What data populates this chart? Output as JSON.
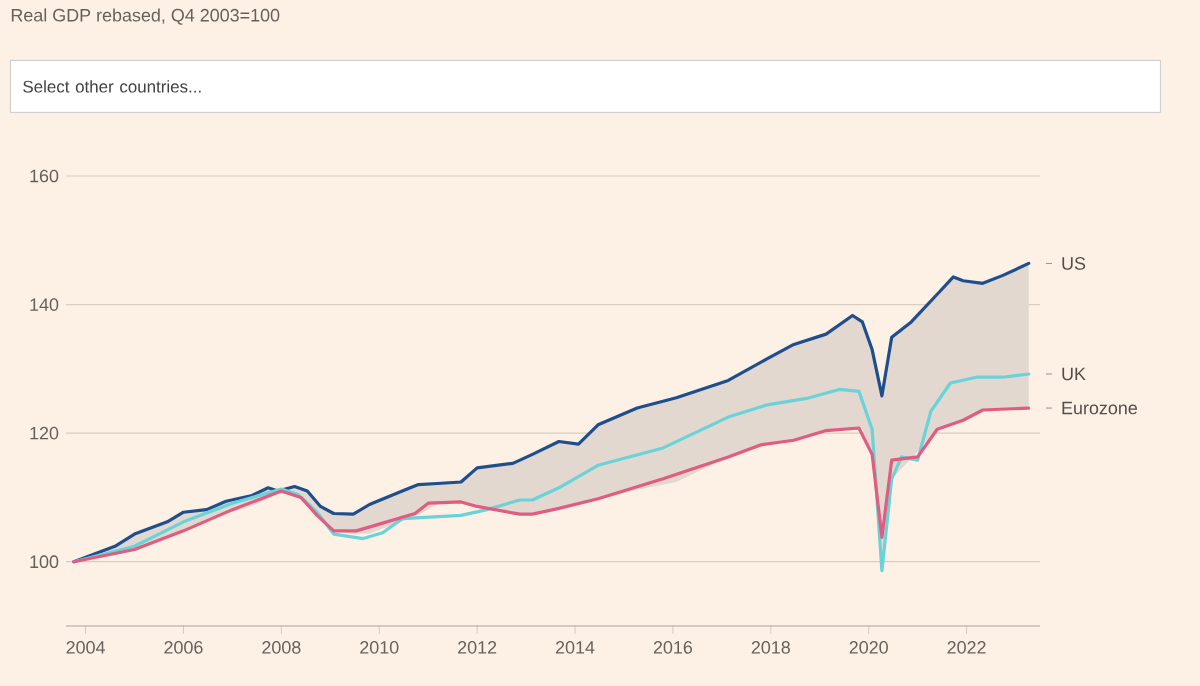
{
  "chart_data": {
    "type": "line",
    "subtitle": "Real GDP rebased, Q4 2003=100",
    "annotations": [
      "Select other countries..."
    ],
    "xlim": [
      2003.6,
      2023.5
    ],
    "xticks": [
      2004,
      2006,
      2008,
      2010,
      2012,
      2014,
      2016,
      2018,
      2020,
      2022
    ],
    "ylim": [
      90,
      160
    ],
    "yticks": [
      100,
      120,
      140,
      160
    ],
    "grid": "y",
    "series": [
      {
        "name": "US",
        "color": "#1f4e8c",
        "x": [
          2003.76,
          2004.6,
          2005,
          2005.67,
          2006,
          2006.47,
          2006.87,
          2007.4,
          2007.73,
          2007.93,
          2008.27,
          2008.53,
          2008.8,
          2009.07,
          2009.47,
          2009.8,
          2010.47,
          2010.8,
          2011.27,
          2011.67,
          2012,
          2012.73,
          2013.13,
          2013.67,
          2014.07,
          2014.47,
          2015.27,
          2016.07,
          2017.13,
          2017.93,
          2018.47,
          2019.13,
          2019.67,
          2019.87,
          2020.07,
          2020.27,
          2020.47,
          2020.87,
          2021.4,
          2021.73,
          2021.93,
          2022.33,
          2022.73,
          2023.27
        ],
        "values": [
          100,
          102.4,
          104.3,
          106.2,
          107.7,
          108.1,
          109.4,
          110.3,
          111.5,
          111.0,
          111.7,
          111.0,
          108.6,
          107.5,
          107.4,
          108.9,
          111.0,
          112.0,
          112.2,
          112.4,
          114.6,
          115.3,
          116.7,
          118.7,
          118.3,
          121.3,
          123.9,
          125.5,
          128.2,
          131.6,
          133.8,
          135.4,
          138.3,
          137.3,
          133,
          125.8,
          134.9,
          137.3,
          141.6,
          144.3,
          143.7,
          143.3,
          144.5,
          146.4
        ],
        "upper": [
          100,
          102.4,
          104.3,
          106.2,
          107.7,
          108.1,
          109.4,
          110.3,
          111.5,
          111.0,
          111.7,
          111.0,
          108.6,
          107.5,
          107.4,
          108.9,
          111.0,
          112.0,
          112.2,
          112.4,
          114.6,
          115.3,
          116.7,
          118.7,
          118.3,
          121.3,
          123.9,
          125.5,
          128.2,
          131.6,
          133.8,
          135.4,
          138.3,
          137.3,
          133,
          125.8,
          134.9,
          137.3,
          141.6,
          144.3,
          143.7,
          143.3,
          144.5,
          146.4
        ],
        "lower": [
          100,
          101,
          101.9,
          103.9,
          104.8,
          106.2,
          107.4,
          108.7,
          109.8,
          110.6,
          110.4,
          109.3,
          107.0,
          104.8,
          104.3,
          104.4,
          106.3,
          107.3,
          109.2,
          109.3,
          108.6,
          107.5,
          107.4,
          108.3,
          109,
          109.6,
          111.2,
          112.4,
          116.3,
          118.1,
          118.9,
          120.4,
          120.7,
          120.7,
          116.7,
          98.6,
          112.9,
          116,
          120.6,
          121.6,
          122,
          123.6,
          123.8,
          123.9
        ]
      },
      {
        "name": "UK",
        "color": "#6ad3d9",
        "x": [
          2003.76,
          2005,
          2006,
          2007,
          2008,
          2008.33,
          2008.73,
          2009.07,
          2009.67,
          2010.07,
          2010.47,
          2011.67,
          2012.2,
          2012.87,
          2013.13,
          2013.67,
          2014.47,
          2015.8,
          2017.13,
          2017.93,
          2018.73,
          2019.4,
          2019.8,
          2020.07,
          2020.27,
          2020.47,
          2020.67,
          2021,
          2021.27,
          2021.67,
          2022.2,
          2022.73,
          2023.27
        ],
        "values": [
          100,
          102.4,
          106.2,
          109.1,
          111.3,
          110.5,
          107.7,
          104.3,
          103.6,
          104.5,
          106.7,
          107.2,
          108.1,
          109.6,
          109.6,
          111.5,
          115.0,
          117.7,
          122.5,
          124.4,
          125.4,
          126.8,
          126.5,
          120.6,
          98.6,
          112.9,
          116.3,
          115.8,
          123.4,
          127.8,
          128.7,
          128.7,
          129.2
        ]
      },
      {
        "name": "Eurozone",
        "color": "#e05c80",
        "x": [
          2003.76,
          2005,
          2006,
          2007,
          2008,
          2008.4,
          2008.73,
          2009.07,
          2009.53,
          2010.07,
          2010.73,
          2011,
          2011.67,
          2012,
          2012.87,
          2013.13,
          2013.67,
          2014.47,
          2015.8,
          2017.13,
          2017.8,
          2018.47,
          2019.13,
          2019.8,
          2020.07,
          2020.27,
          2020.47,
          2021,
          2021.4,
          2021.93,
          2022.33,
          2023.27
        ],
        "values": [
          100,
          101.9,
          104.8,
          108.1,
          111.0,
          110,
          107.2,
          104.8,
          104.8,
          106.0,
          107.5,
          109.1,
          109.3,
          108.6,
          107.4,
          107.4,
          108.3,
          109.8,
          112.9,
          116.3,
          118.2,
          118.9,
          120.4,
          120.8,
          116.7,
          103.8,
          115.8,
          116.3,
          120.6,
          122,
          123.6,
          123.9
        ]
      }
    ]
  }
}
